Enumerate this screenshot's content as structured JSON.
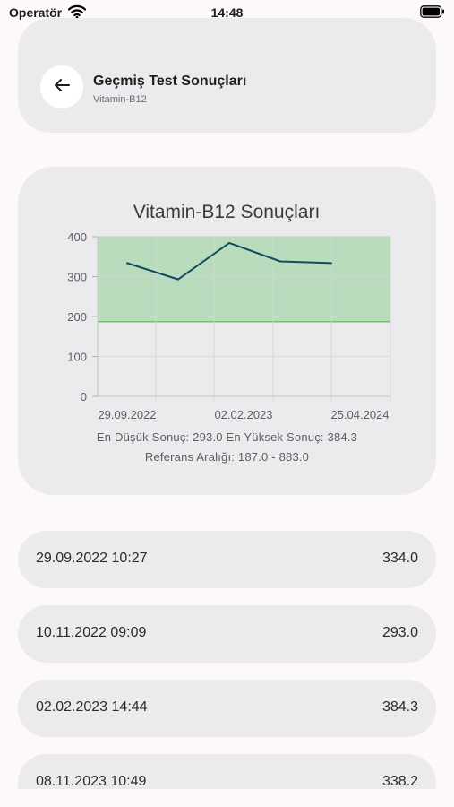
{
  "status_bar": {
    "carrier": "Operatör",
    "time": "14:48"
  },
  "header": {
    "title": "Geçmiş Test Sonuçları",
    "subtitle": "Vitamin-B12"
  },
  "chart_data": {
    "type": "line",
    "title": "Vitamin-B12 Sonuçları",
    "x": [
      "29.09.2022",
      "10.11.2022",
      "02.02.2023",
      "08.11.2023",
      "25.04.2024"
    ],
    "x_tick_labels": [
      "29.09.2022",
      "02.02.2023",
      "25.04.2024"
    ],
    "series": [
      {
        "values": [
          334.0,
          293.0,
          384.3,
          338.2,
          334.0
        ]
      }
    ],
    "ylim": [
      0,
      400
    ],
    "y_ticks": [
      "0",
      "100",
      "200",
      "300",
      "400"
    ],
    "reference_band": [
      187,
      400
    ],
    "grid": true,
    "colors": {
      "line": "#124a63",
      "band": "#b9dcbc",
      "band_edge": "#6fbf73"
    }
  },
  "summary": {
    "minmax": "En Düşük Sonuç: 293.0 En Yüksek Sonuç: 384.3",
    "reference": "Referans Aralığı: 187.0 - 883.0"
  },
  "results": [
    {
      "date": "29.09.2022 10:27",
      "value": "334.0"
    },
    {
      "date": "10.11.2022 09:09",
      "value": "293.0"
    },
    {
      "date": "02.02.2023 14:44",
      "value": "384.3"
    },
    {
      "date": "08.11.2023 10:49",
      "value": "338.2"
    }
  ]
}
